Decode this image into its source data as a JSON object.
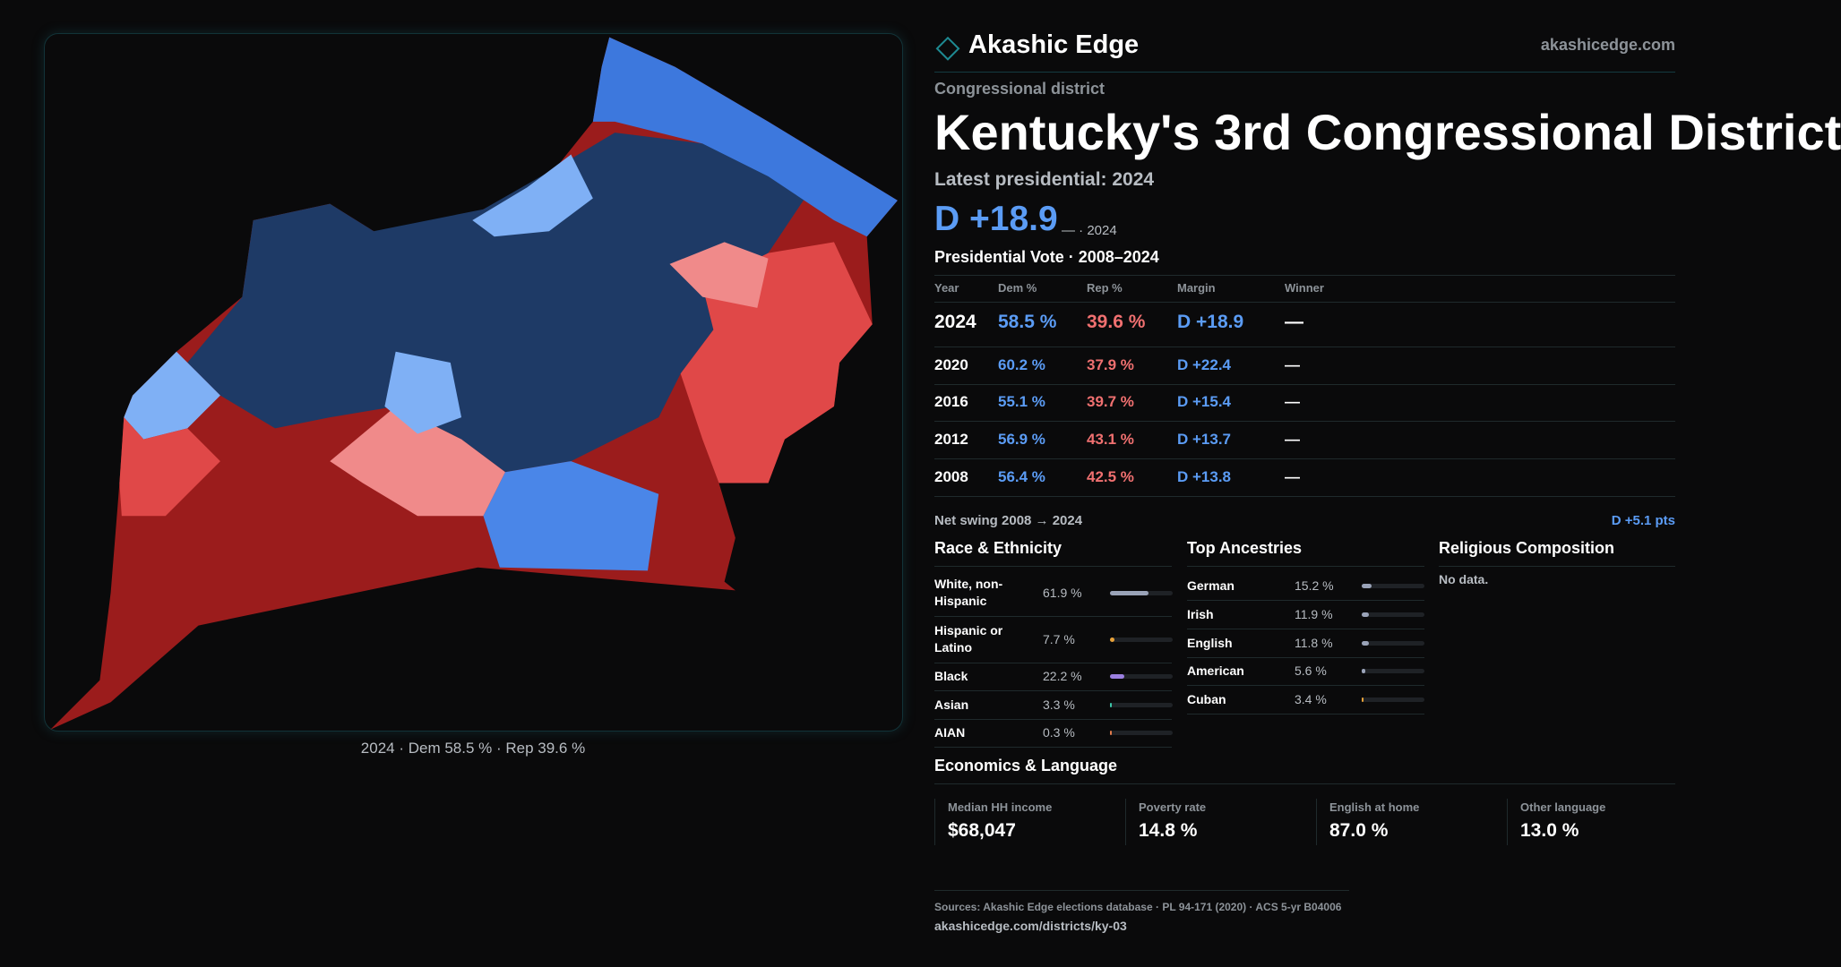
{
  "header": {
    "brand": "Akashic Edge",
    "site": "akashicedge.com"
  },
  "kicker": "Congressional district",
  "title": "Kentucky's 3rd Congressional District",
  "latest": "Latest presidential: 2024",
  "margin": "D +18.9",
  "margin_note": "— · 2024",
  "map_caption": "2024 · Dem 58.5 % · Rep 39.6 %",
  "vote_table": {
    "title": "Presidential Vote · 2008–2024",
    "columns": [
      "Year",
      "Dem %",
      "Rep %",
      "Margin",
      "Winner"
    ],
    "rows": [
      [
        "2024",
        "58.5 %",
        "39.6 %",
        "D +18.9",
        "—"
      ],
      [
        "2020",
        "60.2 %",
        "37.9 %",
        "D +22.4",
        "—"
      ],
      [
        "2016",
        "55.1 %",
        "39.7 %",
        "D +15.4",
        "—"
      ],
      [
        "2012",
        "56.9 %",
        "43.1 %",
        "D +13.7",
        "—"
      ],
      [
        "2008",
        "56.4 %",
        "42.5 %",
        "D +13.8",
        "—"
      ]
    ]
  },
  "net_swing": {
    "label": "Net swing 2008 → 2024",
    "value": "D +5.1 pts"
  },
  "race": {
    "title": "Race & Ethnicity",
    "rows": [
      {
        "label": "White, non-Hispanic",
        "value": 61.9,
        "value_label": "61.9 %",
        "color": "#9aa3b8"
      },
      {
        "label": "Hispanic or Latino",
        "value": 7.7,
        "value_label": "7.7 %",
        "color": "#e8a23a"
      },
      {
        "label": "Black",
        "value": 22.2,
        "value_label": "22.2 %",
        "color": "#9b7fe0"
      },
      {
        "label": "Asian",
        "value": 3.3,
        "value_label": "3.3 %",
        "color": "#3cc7a8"
      },
      {
        "label": "AIAN",
        "value": 0.3,
        "value_label": "0.3 %",
        "color": "#e07a4a"
      }
    ]
  },
  "ancestries": {
    "title": "Top Ancestries",
    "rows": [
      {
        "label": "German",
        "value": 15.2,
        "value_label": "15.2 %",
        "color": "#9aa3b8"
      },
      {
        "label": "Irish",
        "value": 11.9,
        "value_label": "11.9 %",
        "color": "#9aa3b8"
      },
      {
        "label": "English",
        "value": 11.8,
        "value_label": "11.8 %",
        "color": "#9aa3b8"
      },
      {
        "label": "American",
        "value": 5.6,
        "value_label": "5.6 %",
        "color": "#9aa3b8"
      },
      {
        "label": "Cuban",
        "value": 3.4,
        "value_label": "3.4 %",
        "color": "#e8a23a"
      }
    ]
  },
  "religion": {
    "title": "Religious Composition",
    "note": "No data."
  },
  "economics": {
    "title": "Economics & Language",
    "stats": [
      {
        "label": "Median HH income",
        "value": "$68,047"
      },
      {
        "label": "Poverty rate",
        "value": "14.8 %"
      },
      {
        "label": "English at home",
        "value": "87.0 %"
      },
      {
        "label": "Other language",
        "value": "13.0 %"
      }
    ]
  },
  "footer": {
    "sources": "Sources: Akashic Edge elections database · PL 94-171 (2020) · ACS 5-yr B04006",
    "url": "akashicedge.com/districts/ky-03"
  }
}
